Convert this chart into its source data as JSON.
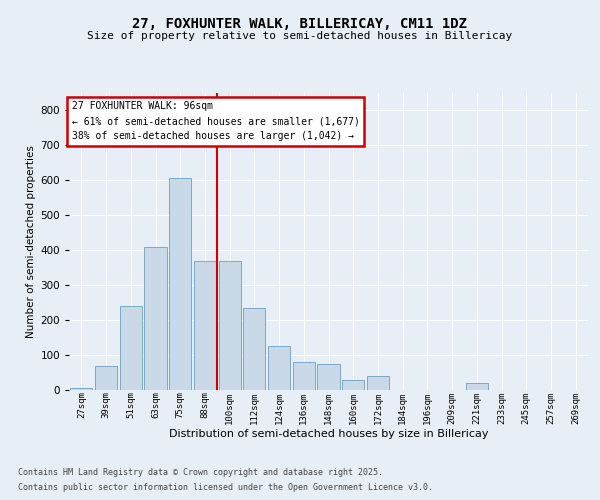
{
  "title_line1": "27, FOXHUNTER WALK, BILLERICAY, CM11 1DZ",
  "title_line2": "Size of property relative to semi-detached houses in Billericay",
  "xlabel": "Distribution of semi-detached houses by size in Billericay",
  "ylabel": "Number of semi-detached properties",
  "bin_labels": [
    "27sqm",
    "39sqm",
    "51sqm",
    "63sqm",
    "75sqm",
    "88sqm",
    "100sqm",
    "112sqm",
    "124sqm",
    "136sqm",
    "148sqm",
    "160sqm",
    "172sqm",
    "184sqm",
    "196sqm",
    "209sqm",
    "221sqm",
    "233sqm",
    "245sqm",
    "257sqm",
    "269sqm"
  ],
  "bar_values": [
    5,
    70,
    240,
    410,
    605,
    370,
    370,
    235,
    125,
    80,
    75,
    30,
    40,
    0,
    0,
    0,
    20,
    0,
    0,
    0,
    0
  ],
  "bar_color": "#c9d9e8",
  "bar_edge_color": "#7aaac8",
  "vline_color": "#cc0000",
  "annotation_text": "27 FOXHUNTER WALK: 96sqm\n← 61% of semi-detached houses are smaller (1,677)\n38% of semi-detached houses are larger (1,042) →",
  "annotation_box_color": "#ffffff",
  "annotation_box_edge": "#cc0000",
  "footer_line1": "Contains HM Land Registry data © Crown copyright and database right 2025.",
  "footer_line2": "Contains public sector information licensed under the Open Government Licence v3.0.",
  "bg_color": "#e8eef5",
  "ylim": [
    0,
    850
  ],
  "yticks": [
    0,
    100,
    200,
    300,
    400,
    500,
    600,
    700,
    800
  ]
}
